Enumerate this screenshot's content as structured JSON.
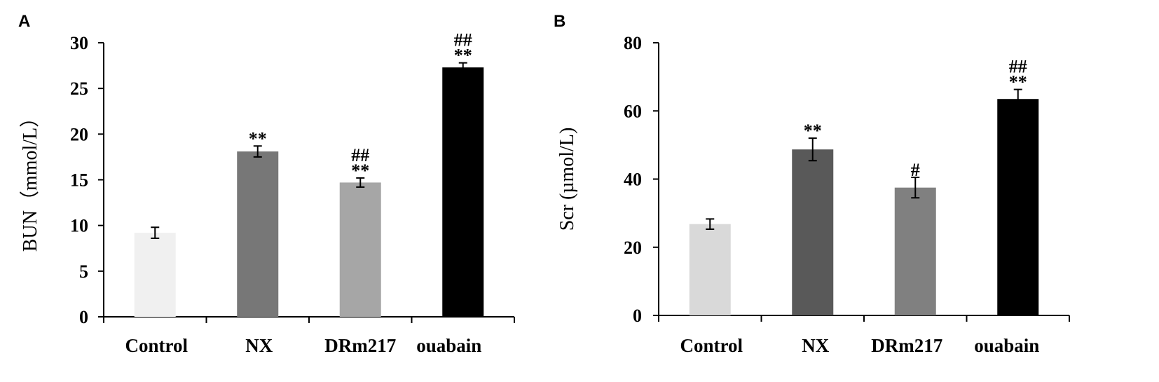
{
  "chart_data": [
    {
      "panel": "A",
      "type": "bar",
      "ylabel": "BUN（mmol/L）",
      "ylim": [
        0,
        30
      ],
      "yticks": [
        0,
        5,
        10,
        15,
        20,
        25,
        30
      ],
      "categories": [
        "Control",
        "NX",
        "DRm217",
        "ouabain"
      ],
      "values": [
        9.2,
        18.1,
        14.7,
        27.3
      ],
      "errors": [
        0.6,
        0.6,
        0.5,
        0.5
      ],
      "colors": [
        "#f0f0f0",
        "#777777",
        "#a6a6a6",
        "#000000"
      ],
      "annotations": [
        [
          "",
          ""
        ],
        [
          "",
          "**"
        ],
        [
          "##",
          "**"
        ],
        [
          "##",
          "**"
        ]
      ]
    },
    {
      "panel": "B",
      "type": "bar",
      "ylabel": "Scr (µmol/L)",
      "ylim": [
        0,
        80
      ],
      "yticks": [
        0,
        20,
        40,
        60,
        80
      ],
      "categories": [
        "Control",
        "NX",
        "DRm217",
        "ouabain"
      ],
      "values": [
        26.8,
        48.7,
        37.5,
        63.5
      ],
      "errors": [
        1.5,
        3.3,
        3.0,
        2.8
      ],
      "colors": [
        "#d9d9d9",
        "#595959",
        "#808080",
        "#000000"
      ],
      "annotations": [
        [
          "",
          ""
        ],
        [
          "",
          "**"
        ],
        [
          "",
          "#"
        ],
        [
          "##",
          "**"
        ]
      ]
    }
  ]
}
